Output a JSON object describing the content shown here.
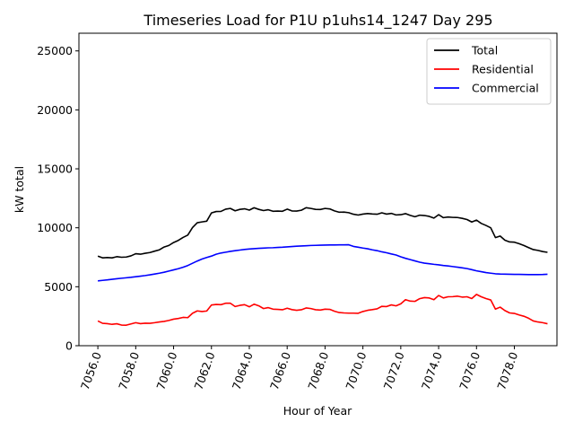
{
  "chart_data": {
    "type": "line",
    "title": "Timeseries Load for P1U p1uhs14_1247  Day 295",
    "xlabel": "Hour of Year",
    "ylabel": "kW total",
    "xlim": [
      7055.0,
      7080.25
    ],
    "ylim": [
      0,
      26500
    ],
    "xticks": [
      7056,
      7058,
      7060,
      7062,
      7064,
      7066,
      7068,
      7070,
      7072,
      7074,
      7076,
      7078
    ],
    "xtick_labels": [
      "7056.0",
      "7058.0",
      "7060.0",
      "7062.0",
      "7064.0",
      "7066.0",
      "7068.0",
      "7070.0",
      "7072.0",
      "7074.0",
      "7076.0",
      "7078.0"
    ],
    "yticks": [
      0,
      5000,
      10000,
      15000,
      20000,
      25000
    ],
    "ytick_labels": [
      "0",
      "5000",
      "10000",
      "15000",
      "20000",
      "25000"
    ],
    "grid": false,
    "legend_position": "top-right",
    "x": {
      "start": 7056.0,
      "step": 0.25,
      "count": 96
    },
    "series": [
      {
        "name": "Total",
        "color": "#000000",
        "values": [
          7600,
          7450,
          7480,
          7450,
          7550,
          7500,
          7520,
          7620,
          7800,
          7760,
          7840,
          7900,
          8020,
          8130,
          8370,
          8500,
          8750,
          8930,
          9180,
          9380,
          10020,
          10430,
          10500,
          10560,
          11260,
          11380,
          11390,
          11580,
          11640,
          11440,
          11560,
          11610,
          11500,
          11700,
          11560,
          11460,
          11530,
          11400,
          11420,
          11400,
          11580,
          11430,
          11420,
          11490,
          11700,
          11640,
          11560,
          11550,
          11640,
          11600,
          11430,
          11320,
          11330,
          11280,
          11150,
          11080,
          11160,
          11210,
          11170,
          11150,
          11270,
          11160,
          11220,
          11090,
          11110,
          11200,
          11050,
          10940,
          11070,
          11040,
          10970,
          10820,
          11110,
          10860,
          10910,
          10880,
          10870,
          10800,
          10700,
          10490,
          10650,
          10370,
          10200,
          10000,
          9170,
          9300,
          8950,
          8800,
          8780,
          8650,
          8500,
          8320,
          8150,
          8080,
          7980,
          7920
        ]
      },
      {
        "name": "Residential",
        "color": "#ff0000",
        "values": [
          2100,
          1900,
          1870,
          1810,
          1860,
          1750,
          1740,
          1850,
          1950,
          1870,
          1910,
          1900,
          1950,
          2010,
          2060,
          2140,
          2250,
          2310,
          2400,
          2380,
          2750,
          2950,
          2900,
          2940,
          3450,
          3500,
          3480,
          3600,
          3600,
          3320,
          3420,
          3480,
          3300,
          3520,
          3380,
          3150,
          3230,
          3100,
          3080,
          3050,
          3180,
          3060,
          3000,
          3050,
          3200,
          3150,
          3050,
          3020,
          3100,
          3080,
          2920,
          2810,
          2780,
          2760,
          2760,
          2750,
          2900,
          3000,
          3060,
          3130,
          3340,
          3320,
          3460,
          3380,
          3550,
          3900,
          3780,
          3760,
          3990,
          4080,
          4050,
          3900,
          4260,
          4050,
          4150,
          4160,
          4200,
          4120,
          4150,
          4000,
          4350,
          4150,
          4000,
          3880,
          3100,
          3270,
          2980,
          2780,
          2740,
          2610,
          2500,
          2330,
          2100,
          2010,
          1950,
          1860
        ]
      },
      {
        "name": "Commercial",
        "color": "#0000ff",
        "values": [
          5500,
          5540,
          5580,
          5630,
          5680,
          5720,
          5760,
          5800,
          5850,
          5900,
          5950,
          6010,
          6080,
          6150,
          6230,
          6330,
          6430,
          6530,
          6650,
          6800,
          6990,
          7180,
          7350,
          7480,
          7600,
          7760,
          7860,
          7930,
          8000,
          8060,
          8110,
          8160,
          8200,
          8230,
          8260,
          8280,
          8300,
          8310,
          8330,
          8350,
          8380,
          8410,
          8440,
          8460,
          8480,
          8500,
          8510,
          8520,
          8530,
          8540,
          8540,
          8550,
          8550,
          8560,
          8420,
          8350,
          8280,
          8220,
          8130,
          8060,
          7960,
          7880,
          7780,
          7690,
          7540,
          7410,
          7300,
          7190,
          7080,
          7000,
          6950,
          6900,
          6860,
          6800,
          6760,
          6710,
          6660,
          6600,
          6540,
          6450,
          6350,
          6280,
          6200,
          6150,
          6100,
          6080,
          6070,
          6060,
          6050,
          6050,
          6040,
          6030,
          6030,
          6030,
          6040,
          6060
        ]
      }
    ]
  }
}
